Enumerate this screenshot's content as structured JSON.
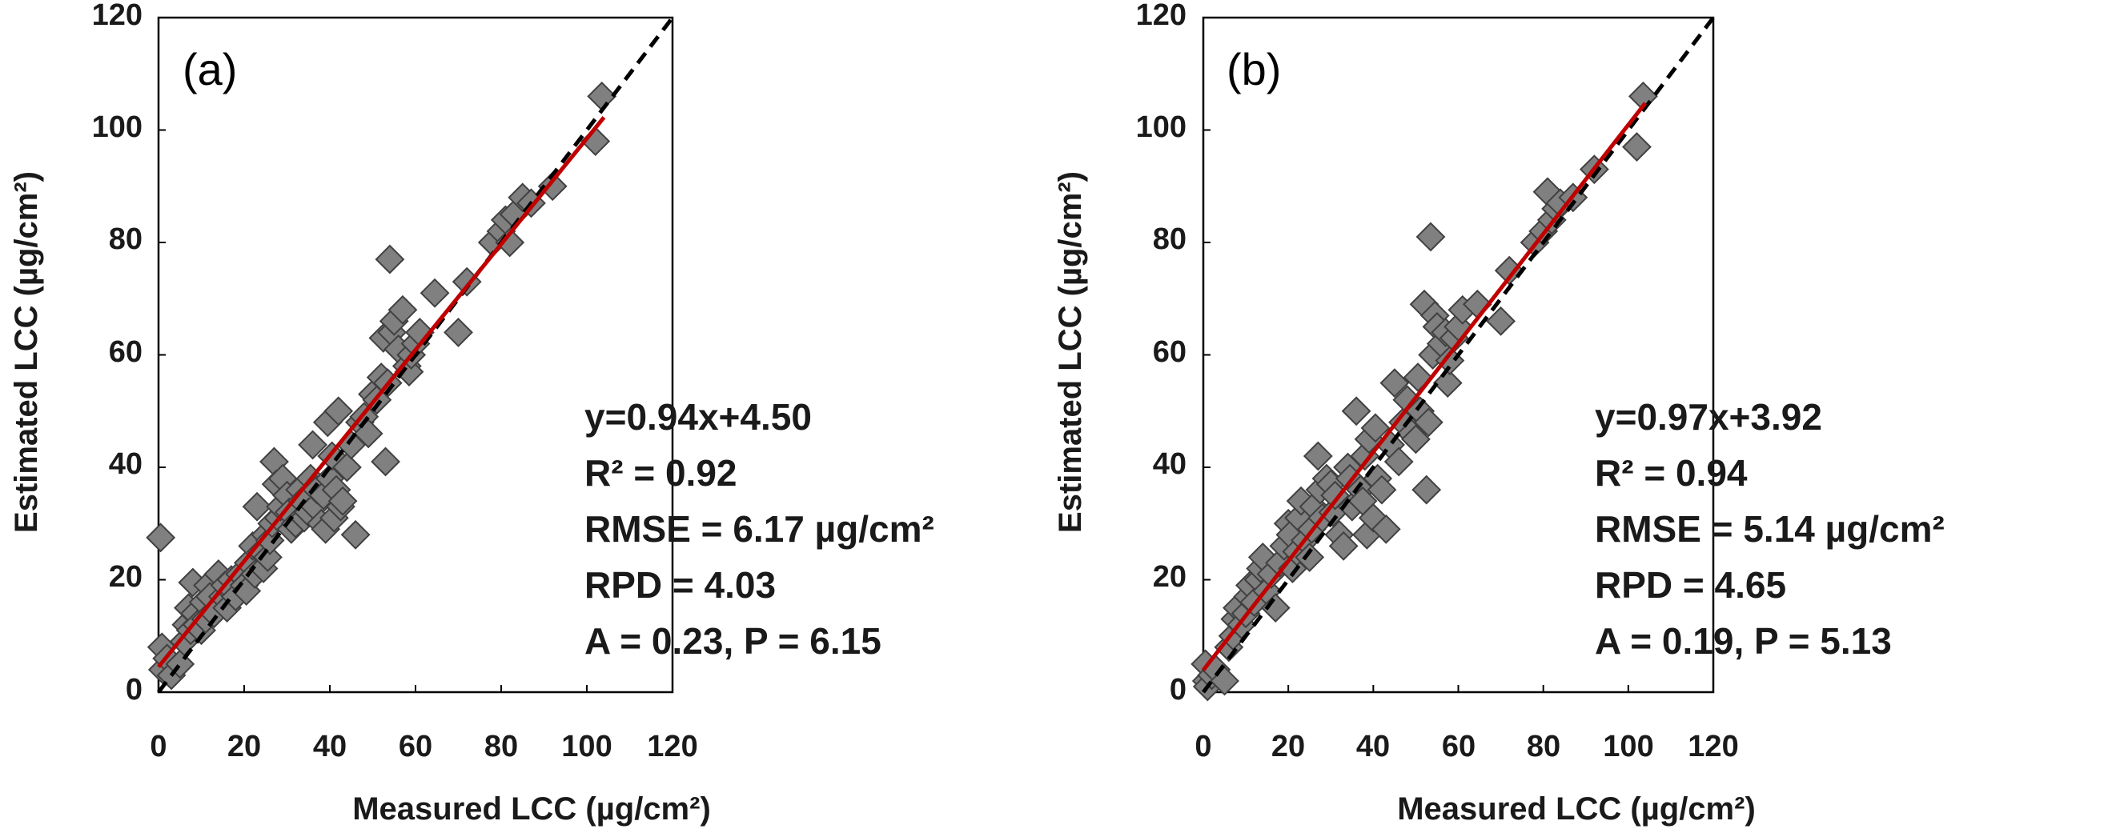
{
  "chart_data": [
    {
      "type": "scatter",
      "panel_label": "(a)",
      "xlabel": "Measured LCC (µg/cm²)",
      "ylabel": "Estimated LCC (µg/cm²)",
      "xlim": [
        0,
        120
      ],
      "ylim": [
        0,
        120
      ],
      "xticks": [
        "0",
        "20",
        "40",
        "60",
        "80",
        "100",
        "120"
      ],
      "yticks": [
        "0",
        "20",
        "40",
        "60",
        "80",
        "100",
        "120"
      ],
      "reference_line": {
        "label": "1:1",
        "style": "dashed",
        "color": "#000000"
      },
      "fit_line": {
        "slope": 0.94,
        "intercept": 4.5,
        "x_range": [
          0,
          104
        ],
        "color": "#c00000"
      },
      "stats": [
        "y=0.94x+4.50",
        "R² = 0.92",
        "RMSE = 6.17 µg/cm²",
        "RPD = 4.03",
        "A = 0.23, P = 6.15"
      ],
      "marker": {
        "shape": "diamond",
        "fill": "#808080",
        "stroke": "#404040"
      },
      "points": [
        [
          0.5,
          27.5
        ],
        [
          0.8,
          8
        ],
        [
          1,
          4
        ],
        [
          2,
          6
        ],
        [
          3,
          3
        ],
        [
          5,
          5
        ],
        [
          6,
          9
        ],
        [
          6.5,
          12
        ],
        [
          7,
          15
        ],
        [
          7.5,
          11
        ],
        [
          8,
          19.5
        ],
        [
          8.5,
          14
        ],
        [
          9,
          12
        ],
        [
          10,
          11
        ],
        [
          10.5,
          16
        ],
        [
          11,
          13
        ],
        [
          11.5,
          19
        ],
        [
          12,
          17
        ],
        [
          13,
          14
        ],
        [
          14,
          21
        ],
        [
          15,
          17
        ],
        [
          15.5,
          19
        ],
        [
          16,
          15
        ],
        [
          17,
          20
        ],
        [
          17.5,
          18
        ],
        [
          18,
          17
        ],
        [
          19,
          21
        ],
        [
          20,
          19
        ],
        [
          20.5,
          18
        ],
        [
          21,
          23
        ],
        [
          22,
          26
        ],
        [
          22.5,
          21
        ],
        [
          23,
          33
        ],
        [
          24,
          25
        ],
        [
          24.5,
          22
        ],
        [
          25,
          28
        ],
        [
          25.5,
          24
        ],
        [
          26,
          27
        ],
        [
          26.5,
          30
        ],
        [
          27,
          41
        ],
        [
          27.5,
          37
        ],
        [
          28,
          31
        ],
        [
          28.5,
          33
        ],
        [
          29,
          38
        ],
        [
          30,
          35
        ],
        [
          30.5,
          32
        ],
        [
          31,
          29
        ],
        [
          32,
          30
        ],
        [
          33,
          36
        ],
        [
          33.5,
          34
        ],
        [
          34,
          31
        ],
        [
          35,
          32
        ],
        [
          35.5,
          38
        ],
        [
          36,
          44
        ],
        [
          36.5,
          33
        ],
        [
          37,
          36
        ],
        [
          38,
          30
        ],
        [
          38.5,
          35
        ],
        [
          39,
          29
        ],
        [
          39.5,
          48
        ],
        [
          40,
          38
        ],
        [
          40.5,
          42
        ],
        [
          41,
          31
        ],
        [
          41.5,
          36
        ],
        [
          42,
          50
        ],
        [
          42.5,
          33
        ],
        [
          43,
          34
        ],
        [
          44,
          40
        ],
        [
          45,
          44
        ],
        [
          46,
          28
        ],
        [
          47,
          48
        ],
        [
          48,
          49
        ],
        [
          49,
          46
        ],
        [
          50,
          53
        ],
        [
          51,
          52
        ],
        [
          52,
          56
        ],
        [
          52.5,
          63
        ],
        [
          53,
          41
        ],
        [
          53.5,
          55
        ],
        [
          54,
          77
        ],
        [
          54.5,
          64
        ],
        [
          55,
          66
        ],
        [
          56,
          61
        ],
        [
          57,
          68
        ],
        [
          58,
          58
        ],
        [
          58.5,
          57
        ],
        [
          59,
          60
        ],
        [
          60,
          62
        ],
        [
          61,
          64
        ],
        [
          64.5,
          71
        ],
        [
          70,
          64
        ],
        [
          72,
          73
        ],
        [
          78,
          80
        ],
        [
          80,
          82
        ],
        [
          81,
          84
        ],
        [
          82,
          80
        ],
        [
          83,
          85
        ],
        [
          85,
          88
        ],
        [
          87,
          87
        ],
        [
          92,
          90
        ],
        [
          102,
          98
        ],
        [
          103.5,
          106
        ]
      ]
    },
    {
      "type": "scatter",
      "panel_label": "(b)",
      "xlabel": "Measured LCC (µg/cm²)",
      "ylabel": "Estimated LCC (µg/cm²)",
      "xlim": [
        0,
        120
      ],
      "ylim": [
        0,
        120
      ],
      "xticks": [
        "0",
        "20",
        "40",
        "60",
        "80",
        "100",
        "120"
      ],
      "yticks": [
        "0",
        "20",
        "40",
        "60",
        "80",
        "100",
        "120"
      ],
      "reference_line": {
        "label": "1:1",
        "style": "dashed",
        "color": "#000000"
      },
      "fit_line": {
        "slope": 0.97,
        "intercept": 3.92,
        "x_range": [
          0,
          104
        ],
        "color": "#c00000"
      },
      "stats": [
        "y=0.97x+3.92",
        "R² = 0.94",
        "RMSE = 5.14 µg/cm²",
        "RPD = 4.65",
        "A = 0.19, P = 5.13"
      ],
      "marker": {
        "shape": "diamond",
        "fill": "#808080",
        "stroke": "#404040"
      },
      "points": [
        [
          0.5,
          5
        ],
        [
          0.8,
          2
        ],
        [
          1,
          1
        ],
        [
          2,
          3
        ],
        [
          3,
          4
        ],
        [
          5,
          2
        ],
        [
          6,
          8
        ],
        [
          7,
          10
        ],
        [
          7.5,
          13
        ],
        [
          8,
          15
        ],
        [
          9,
          12
        ],
        [
          10,
          14
        ],
        [
          10.5,
          17
        ],
        [
          11,
          19
        ],
        [
          12,
          16
        ],
        [
          13,
          20
        ],
        [
          13.5,
          22
        ],
        [
          14,
          24
        ],
        [
          15,
          18
        ],
        [
          16,
          21
        ],
        [
          17,
          15
        ],
        [
          18,
          23
        ],
        [
          19,
          26
        ],
        [
          20,
          30
        ],
        [
          20.5,
          28
        ],
        [
          21,
          22
        ],
        [
          22,
          25
        ],
        [
          22.5,
          31
        ],
        [
          23,
          34
        ],
        [
          24,
          27
        ],
        [
          25,
          24
        ],
        [
          25.5,
          29
        ],
        [
          26,
          33
        ],
        [
          27,
          42
        ],
        [
          27.5,
          36
        ],
        [
          28,
          31
        ],
        [
          29,
          38
        ],
        [
          30,
          37
        ],
        [
          30.5,
          32
        ],
        [
          31,
          35
        ],
        [
          32,
          28
        ],
        [
          33,
          26
        ],
        [
          34,
          40
        ],
        [
          34.5,
          38
        ],
        [
          35,
          33
        ],
        [
          36,
          50
        ],
        [
          37,
          36
        ],
        [
          37.5,
          34
        ],
        [
          38,
          42
        ],
        [
          38.5,
          28
        ],
        [
          39,
          45
        ],
        [
          40,
          31
        ],
        [
          40.5,
          47
        ],
        [
          41,
          38
        ],
        [
          42,
          36
        ],
        [
          43,
          29
        ],
        [
          44,
          44
        ],
        [
          45,
          55
        ],
        [
          46,
          41
        ],
        [
          47,
          48
        ],
        [
          48,
          52
        ],
        [
          49,
          46
        ],
        [
          50,
          45
        ],
        [
          50.5,
          56
        ],
        [
          51,
          50
        ],
        [
          52,
          69
        ],
        [
          52.5,
          36
        ],
        [
          53,
          48
        ],
        [
          53.5,
          81
        ],
        [
          54,
          60
        ],
        [
          54.5,
          67
        ],
        [
          55,
          65
        ],
        [
          56,
          62
        ],
        [
          57,
          64
        ],
        [
          57.5,
          55
        ],
        [
          58,
          59
        ],
        [
          59,
          63
        ],
        [
          60,
          65
        ],
        [
          61,
          68
        ],
        [
          64.5,
          69
        ],
        [
          70,
          66
        ],
        [
          72,
          75
        ],
        [
          78,
          80
        ],
        [
          80,
          82
        ],
        [
          81,
          89
        ],
        [
          82,
          84
        ],
        [
          83,
          86
        ],
        [
          84,
          87
        ],
        [
          87,
          88
        ],
        [
          92,
          93
        ],
        [
          102,
          97
        ],
        [
          103.5,
          106
        ]
      ]
    }
  ]
}
